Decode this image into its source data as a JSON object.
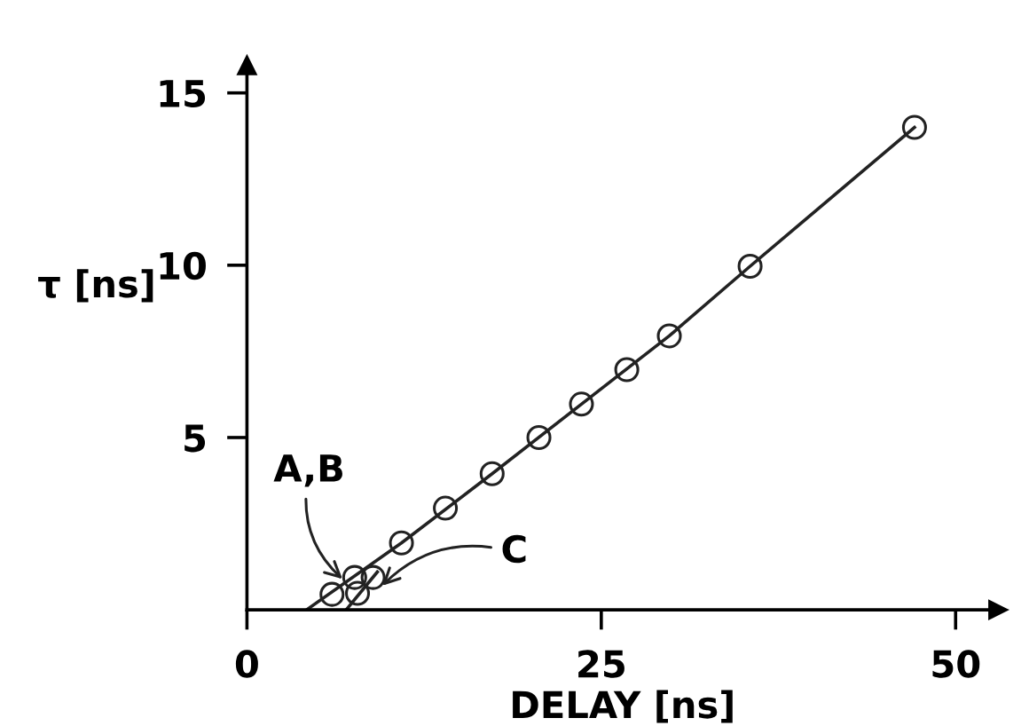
{
  "chart_data": {
    "type": "scatter",
    "xlabel": "DELAY [ns]",
    "ylabel": "τ [ns]",
    "xlim": [
      0,
      53
    ],
    "ylim": [
      0,
      15.8
    ],
    "xticks": [
      0,
      25,
      50
    ],
    "yticks": [
      5,
      10,
      15
    ],
    "grid": false,
    "legend": false,
    "series": [
      {
        "marker": "circle",
        "color": "#222222",
        "x": [
          6.0,
          7.6,
          7.8,
          8.9,
          10.9,
          14.0,
          17.3,
          20.6,
          23.6,
          26.8,
          29.8,
          35.5,
          47.1
        ],
        "values": [
          0.45,
          0.94,
          0.48,
          0.94,
          1.94,
          2.95,
          3.95,
          5.0,
          5.97,
          6.97,
          7.95,
          9.97,
          14.0
        ]
      },
      {
        "type": "line",
        "marker": "none",
        "color": "#222222",
        "x": [
          4.2,
          10.9,
          17.3,
          23.6,
          29.8,
          35.5,
          47.1
        ],
        "values": [
          0,
          1.94,
          3.95,
          5.97,
          7.95,
          9.97,
          14.0
        ]
      },
      {
        "type": "line",
        "marker": "none",
        "color": "#222222",
        "x": [
          7.0,
          9.2
        ],
        "values": [
          0,
          1.1
        ]
      }
    ],
    "annotations": [
      {
        "text": "A,B",
        "x": 7.0,
        "y": 0.8
      },
      {
        "text": "C",
        "x": 9.3,
        "y": 0.6
      }
    ]
  }
}
